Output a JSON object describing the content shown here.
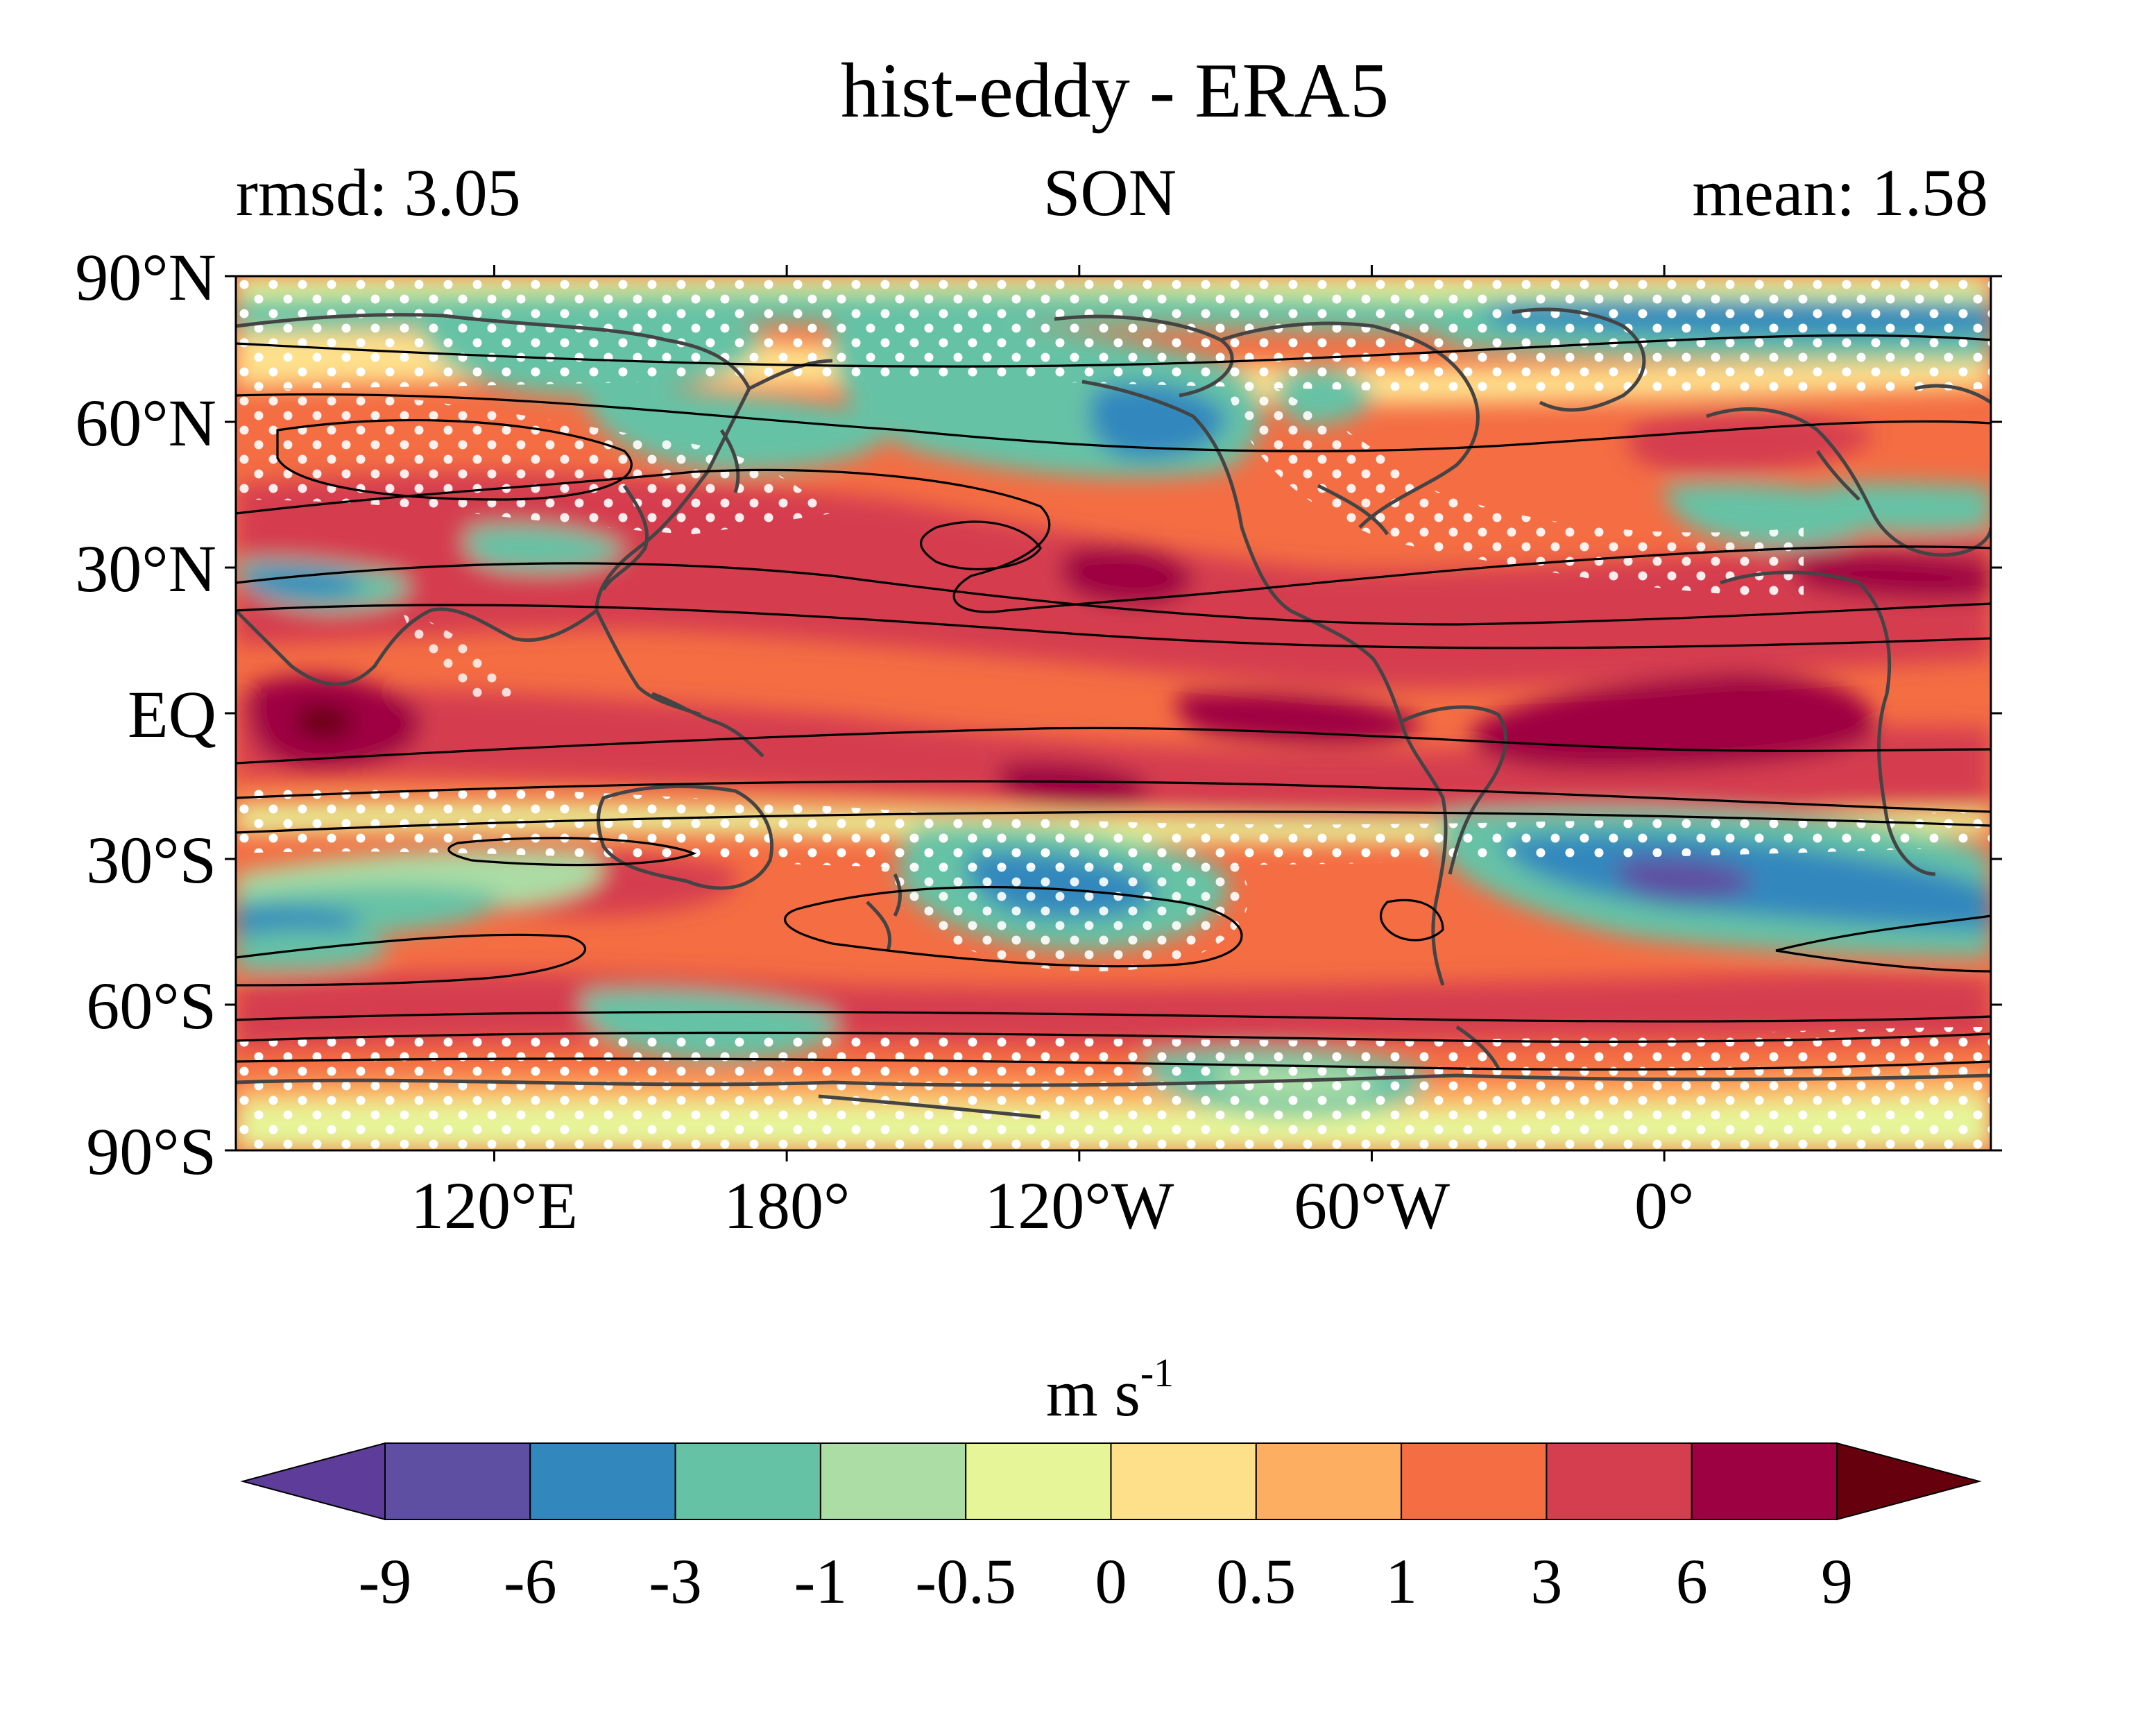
{
  "figure": {
    "title": "hist-eddy - ERA5",
    "subtitle_left": "rmsd: 3.05",
    "subtitle_center": "SON",
    "subtitle_right": "mean: 1.58"
  },
  "map": {
    "projection": "equirectangular",
    "lon_range": [
      67,
      427
    ],
    "lat_range": [
      -90,
      90
    ],
    "lat_ticks": [
      {
        "value": 90,
        "label": "90°N"
      },
      {
        "value": 60,
        "label": "60°N"
      },
      {
        "value": 30,
        "label": "30°N"
      },
      {
        "value": 0,
        "label": "EQ"
      },
      {
        "value": -30,
        "label": "30°S"
      },
      {
        "value": -60,
        "label": "60°S"
      },
      {
        "value": -90,
        "label": "90°S"
      }
    ],
    "lon_ticks": [
      {
        "value": 120,
        "label": "120°E"
      },
      {
        "value": 180,
        "label": "180°"
      },
      {
        "value": 240,
        "label": "120°W"
      },
      {
        "value": 300,
        "label": "60°W"
      },
      {
        "value": 360,
        "label": "0°"
      }
    ],
    "stippling": "white dots",
    "contour_color": "#000000",
    "coastline_color": "#444444"
  },
  "colorbar": {
    "unit_base": "m s",
    "unit_exponent": "-1",
    "bounds": [
      "-9",
      "-6",
      "-3",
      "-1",
      "-0.5",
      "0",
      "0.5",
      "1",
      "3",
      "6",
      "9"
    ],
    "colors": [
      "#5e4fa2",
      "#3288bd",
      "#66c2a5",
      "#abdda4",
      "#e6f598",
      "#fee08b",
      "#fdae61",
      "#f46d43",
      "#d53e4f",
      "#9e0142"
    ],
    "under_color": "#5e3c99",
    "over_color": "#67000d",
    "extend": "both"
  }
}
